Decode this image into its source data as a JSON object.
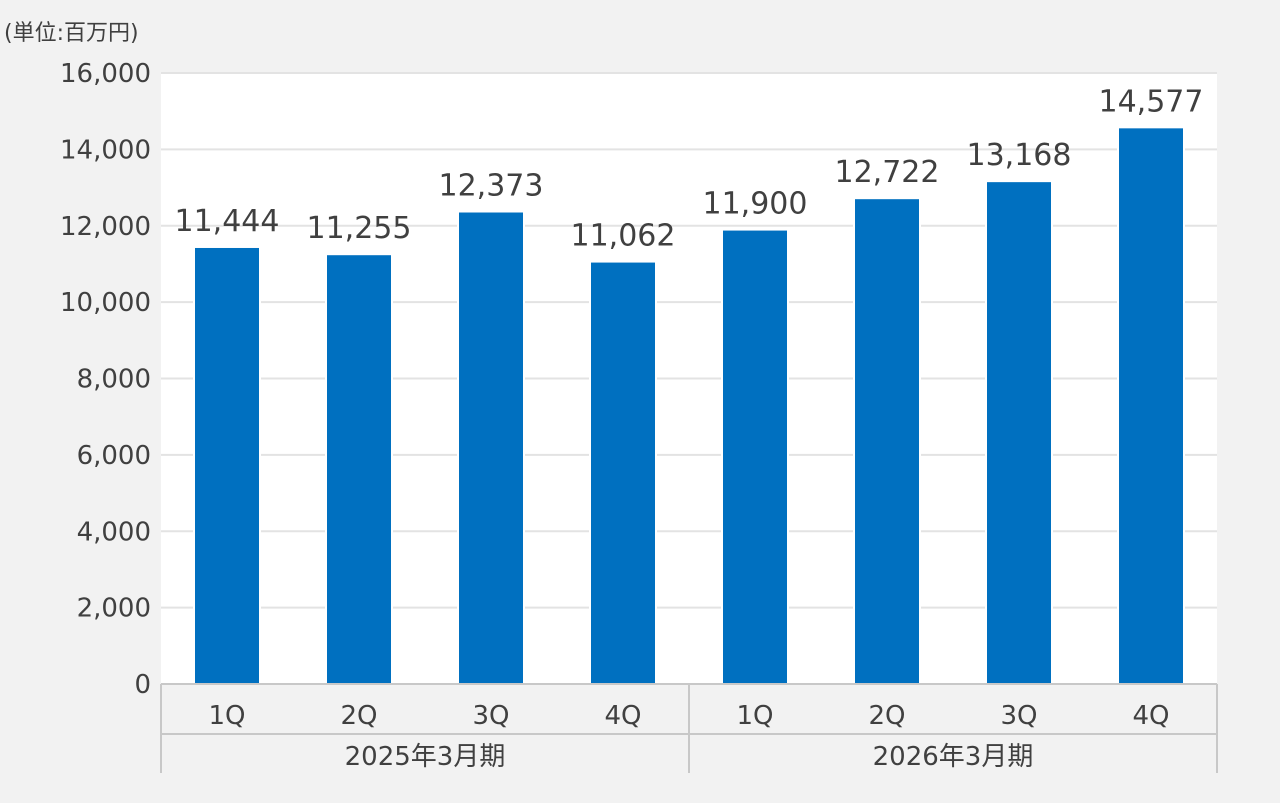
{
  "chart_data": {
    "type": "bar",
    "unit_label": "(単位:百万円)",
    "categories": [
      "1Q",
      "2Q",
      "3Q",
      "4Q",
      "1Q",
      "2Q",
      "3Q",
      "4Q"
    ],
    "groups": [
      {
        "label": "2025年3月期",
        "count": 4
      },
      {
        "label": "2026年3月期",
        "count": 4
      }
    ],
    "values": [
      11444,
      11255,
      12373,
      11062,
      11900,
      12722,
      13168,
      14577
    ],
    "data_labels": [
      "11,444",
      "11,255",
      "12,373",
      "11,062",
      "11,900",
      "12,722",
      "13,168",
      "14,577"
    ],
    "ylim": [
      0,
      16000
    ],
    "yticks": [
      0,
      2000,
      4000,
      6000,
      8000,
      10000,
      12000,
      14000,
      16000
    ],
    "ytick_labels": [
      "0",
      "2,000",
      "4,000",
      "6,000",
      "8,000",
      "10,000",
      "12,000",
      "14,000",
      "16,000"
    ],
    "grid": true,
    "colors": {
      "bar": "#0070c0",
      "grid": "#e3e3e3",
      "plot_bg": "#ffffff",
      "page_bg": "#f2f2f2",
      "text": "#404040",
      "axis": "#c8c8c8"
    }
  }
}
